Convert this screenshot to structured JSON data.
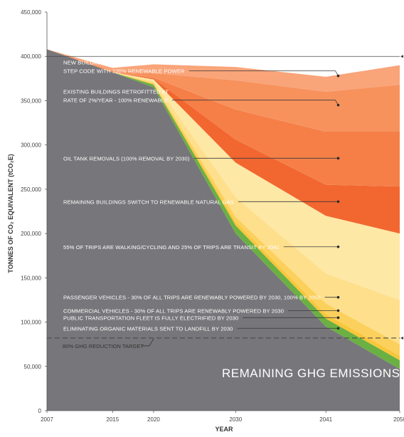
{
  "chart_data": {
    "type": "area",
    "ylabel": "TONNES OF CO₂ EQUIVALENT (tCO₂E)",
    "xlabel": "YEAR",
    "ylim": [
      0,
      450000
    ],
    "y_ticks": [
      0,
      50000,
      100000,
      150000,
      200000,
      250000,
      300000,
      350000,
      400000,
      450000
    ],
    "y_tick_labels": [
      "0",
      "50,000",
      "100,000",
      "150,000",
      "200,000",
      "250,000",
      "300,000",
      "350,000",
      "400,000",
      "450,000"
    ],
    "x_ticks": [
      {
        "label": "2007",
        "x": 2007
      },
      {
        "label": "2015",
        "x": 2015
      },
      {
        "label": "2020",
        "x": 2020
      },
      {
        "label": "2030",
        "x": 2030
      },
      {
        "label": "2041",
        "x": 2041
      },
      {
        "label": "2050",
        "x": 2050
      }
    ],
    "x_points": [
      2007,
      2015,
      2020,
      2030,
      2041,
      2050
    ],
    "baseline_series": {
      "name": "REMAINING GHG EMISSIONS",
      "color": "#77767a",
      "values": [
        408000,
        382000,
        365000,
        200000,
        95000,
        47000
      ]
    },
    "wedges": [
      {
        "name": "ELIMINATING ORGANIC MATERIALS SENT TO LANDFILL BY 2030",
        "color": "#6bb043",
        "values": [
          0,
          0,
          3000,
          9000,
          9000,
          10000
        ]
      },
      {
        "name": "PUBLIC TRANSPORTATION FLEET IS FULLY ELECTRIFIED BY 2030",
        "color": "#f8c63a",
        "values": [
          0,
          0,
          1000,
          4000,
          5000,
          5000
        ]
      },
      {
        "name": "COMMERCIAL VEHICLES - 30% OF ALL TRIPS ARE RENEWABLY POWERED BY 2030",
        "color": "#fcd05c",
        "values": [
          0,
          0,
          1000,
          6000,
          12000,
          13000
        ]
      },
      {
        "name": "PASSENGER VEHICLES - 30% OF ALL TRIPS ARE RENEWABLY POWERED BY 2030, 100% BY 2050",
        "color": "#fedf8c",
        "values": [
          0,
          0,
          2000,
          22000,
          34000,
          50000
        ]
      },
      {
        "name": "55% OF TRIPS ARE WALKING/CYCLING AND 25% OF TRIPS ARE TRANSIT BY 2041",
        "color": "#fee8a6",
        "values": [
          0,
          0,
          2000,
          39000,
          65000,
          75000
        ]
      },
      {
        "name": "REMAINING BUILDINGS SWITCH TO RENEWABLE NATURAL GAS",
        "color": "#f26630",
        "values": [
          0,
          0,
          1000,
          26000,
          35000,
          53000
        ]
      },
      {
        "name": "OIL TANK REMOVALS (100% REMOVAL BY 2030)",
        "color": "#f57f47",
        "values": [
          0,
          0,
          1000,
          34000,
          60000,
          62000
        ]
      },
      {
        "name": "EXISTING BUILDINGS RETROFITTED AT RATE OF 2%/YEAR - 100% RENEWABLE",
        "color": "#f7925d",
        "values": [
          0,
          2000,
          5000,
          33000,
          45000,
          53000
        ]
      },
      {
        "name": "NEW BUILDINGS BUILT TO STEP CODE WITH 100% RENEWABLE POWER",
        "color": "#f9a479",
        "values": [
          0,
          3000,
          10000,
          15000,
          17000,
          22000
        ]
      }
    ],
    "reference_lines": [
      {
        "label": "",
        "value": 400000,
        "style": "solid"
      },
      {
        "label": "80% GHG REDUCTION TARGET",
        "value": 82000,
        "style": "dashed"
      }
    ],
    "annotations": [
      {
        "lines": [
          "NEW BUILDINGS BUILT TO",
          "STEP CODE WITH 100% RENEWABLE POWER"
        ],
        "x": 2042.5,
        "y": 378000
      },
      {
        "lines": [
          "EXISTING BUILDINGS RETROFITTED AT",
          "RATE OF 2%/YEAR - 100% RENEWABLE"
        ],
        "x": 2042.5,
        "y": 345000
      },
      {
        "lines": [
          "OIL TANK REMOVALS (100% REMOVAL BY 2030)"
        ],
        "x": 2042.5,
        "y": 285000
      },
      {
        "lines": [
          "REMAINING BUILDINGS SWITCH TO RENEWABLE NATURAL GAS"
        ],
        "x": 2042.5,
        "y": 236000
      },
      {
        "lines": [
          "55% OF TRIPS ARE WALKING/CYCLING AND 25% OF TRIPS ARE TRANSIT BY 2041"
        ],
        "x": 2042.5,
        "y": 185000
      },
      {
        "lines": [
          "PASSENGER VEHICLES - 30% OF ALL TRIPS ARE RENEWABLY POWERED BY 2030, 100% BY 2050"
        ],
        "x": 2042.5,
        "y": 128000
      },
      {
        "lines": [
          "COMMERCIAL VEHICLES - 30% OF ALL TRIPS ARE RENEWABLY POWERED BY 2030"
        ],
        "x": 2042.5,
        "y": 113000
      },
      {
        "lines": [
          "PUBLIC TRANSPORTATION FLEET IS FULLY ELECTRIFIED BY 2030"
        ],
        "x": 2042.5,
        "y": 105000
      },
      {
        "lines": [
          "ELIMINATING ORGANIC MATERIALS SENT TO LANDFILL BY 2030"
        ],
        "x": 2042.5,
        "y": 93000
      }
    ],
    "center_label": "REMAINING GHG EMISSIONS",
    "grid": false,
    "legend": "none"
  }
}
